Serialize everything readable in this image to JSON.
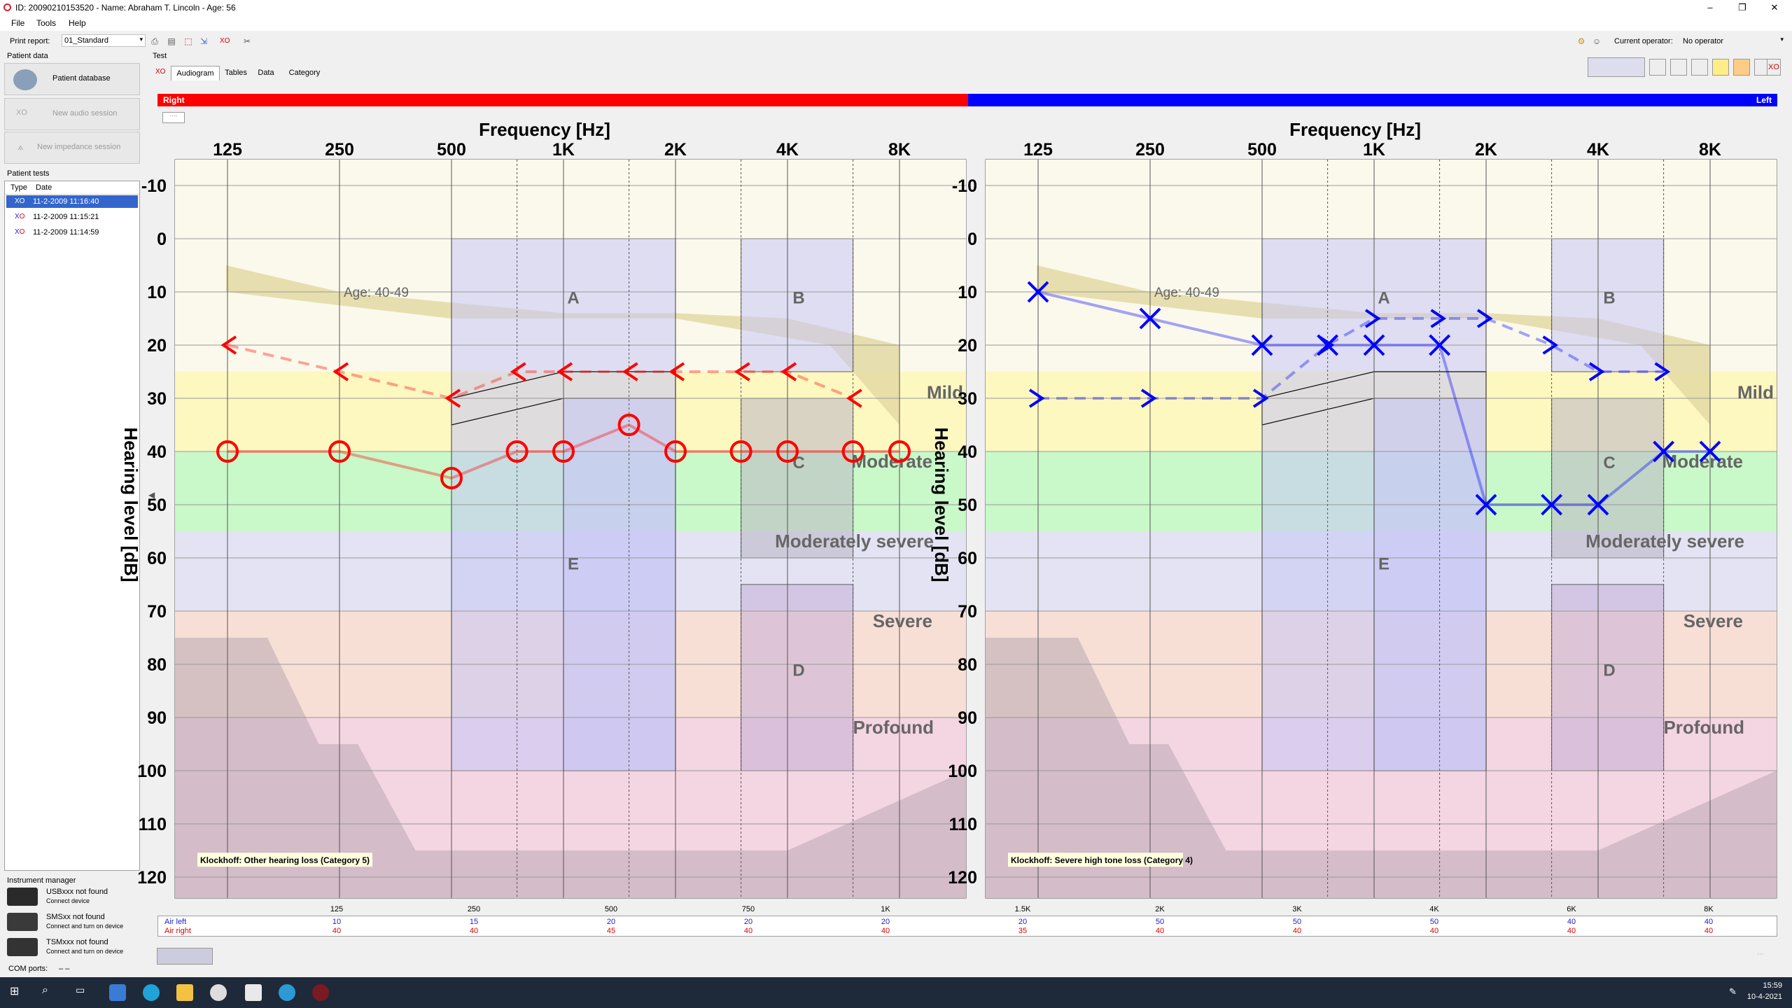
{
  "window": {
    "title": "ID: 20090210153520  -  Name: Abraham T. Lincoln - Age: 56",
    "controls": {
      "minimize": "–",
      "restore": "❐",
      "close": "✕"
    }
  },
  "menu": [
    "File",
    "Tools",
    "Help"
  ],
  "toolbar": {
    "print_report_label": "Print report:",
    "print_report_value": "01_Standard",
    "operator_label": "Current operator:",
    "operator_value": "No operator"
  },
  "left_panel": {
    "patient_data_label": "Patient data",
    "patient_database_button": "Patient database",
    "new_audio_session_button": "New audio session",
    "new_impedance_session_button": "New impedance session",
    "patient_tests_label": "Patient tests",
    "list_headers": {
      "type": "Type",
      "date": "Date"
    },
    "tests": [
      {
        "date": "11-2-2009 11:16:40",
        "selected": true
      },
      {
        "date": "11-2-2009 11:15:21",
        "selected": false
      },
      {
        "date": "11-2-2009 11:14:59",
        "selected": false
      }
    ],
    "instrument_manager_label": "Instrument manager",
    "instruments": [
      {
        "title": "USBxxx not found",
        "subtitle": "Connect device"
      },
      {
        "title": "SMSxx not found",
        "subtitle": "Connect and turn on device"
      },
      {
        "title": "TSMxxx not found",
        "subtitle": "Connect and turn on device"
      }
    ],
    "com_ports_label": "COM ports:",
    "com_ports_value": "–        –"
  },
  "main": {
    "test_label": "Test",
    "tabs": [
      {
        "label": "Audiogram",
        "active": true
      },
      {
        "label": "Tables",
        "active": false
      },
      {
        "label": "Data",
        "active": false
      },
      {
        "label": "Category",
        "active": false
      }
    ],
    "right_bar_label": "Right",
    "left_bar_label": "Left",
    "right_color": "#ff0000",
    "left_color": "#0000ff"
  },
  "chart_data": [
    {
      "type": "audiogram",
      "ear": "right",
      "xlabel": "Frequency [Hz]",
      "ylabel": "Hearing level [dB]",
      "x_ticks": [
        "125",
        "250",
        "500",
        "1K",
        "2K",
        "4K",
        "8K"
      ],
      "y_ticks": [
        -10,
        0,
        10,
        20,
        30,
        40,
        50,
        60,
        70,
        80,
        90,
        100,
        110,
        120
      ],
      "ylim": [
        -10,
        120
      ],
      "age_label": "Age: 40-49",
      "category_labels": [
        "Mild",
        "Moderate",
        "Moderately severe",
        "Severe",
        "Profound"
      ],
      "region_labels": [
        "A",
        "B",
        "C",
        "D",
        "E"
      ],
      "klockhoff": "Klockhoff: Other hearing loss (Category 5)",
      "series": [
        {
          "name": "Air",
          "marker": "O",
          "color": "#ff0000",
          "points": [
            [
              125,
              40
            ],
            [
              250,
              40
            ],
            [
              500,
              45
            ],
            [
              750,
              40
            ],
            [
              1000,
              40
            ],
            [
              1500,
              35
            ],
            [
              2000,
              40
            ],
            [
              3000,
              40
            ],
            [
              4000,
              40
            ],
            [
              6000,
              40
            ],
            [
              8000,
              40
            ]
          ]
        },
        {
          "name": "Bone",
          "marker": "<",
          "color": "#ff0000",
          "points": [
            [
              125,
              20
            ],
            [
              250,
              25
            ],
            [
              500,
              30
            ],
            [
              750,
              25
            ],
            [
              1000,
              25
            ],
            [
              1500,
              25
            ],
            [
              2000,
              25
            ],
            [
              3000,
              25
            ],
            [
              4000,
              25
            ],
            [
              6000,
              30
            ]
          ]
        }
      ]
    },
    {
      "type": "audiogram",
      "ear": "left",
      "xlabel": "Frequency [Hz]",
      "ylabel": "Hearing level [dB]",
      "x_ticks": [
        "125",
        "250",
        "500",
        "1K",
        "2K",
        "4K",
        "8K"
      ],
      "y_ticks": [
        -10,
        0,
        10,
        20,
        30,
        40,
        50,
        60,
        70,
        80,
        90,
        100,
        110,
        120
      ],
      "ylim": [
        -10,
        120
      ],
      "age_label": "Age: 40-49",
      "category_labels": [
        "Mild",
        "Moderate",
        "Moderately severe",
        "Severe",
        "Profound"
      ],
      "region_labels": [
        "A",
        "B",
        "C",
        "D",
        "E"
      ],
      "klockhoff": "Klockhoff: Severe high tone loss (Category 4)",
      "series": [
        {
          "name": "Air",
          "marker": "X",
          "color": "#0000ff",
          "points": [
            [
              125,
              10
            ],
            [
              250,
              15
            ],
            [
              500,
              20
            ],
            [
              750,
              20
            ],
            [
              1000,
              20
            ],
            [
              1500,
              20
            ],
            [
              2000,
              50
            ],
            [
              3000,
              50
            ],
            [
              4000,
              50
            ],
            [
              6000,
              40
            ],
            [
              8000,
              40
            ]
          ]
        },
        {
          "name": "Bone",
          "marker": ">",
          "color": "#0000ff",
          "points": [
            [
              125,
              30
            ],
            [
              250,
              30
            ],
            [
              500,
              30
            ],
            [
              750,
              20
            ],
            [
              1000,
              15
            ],
            [
              1500,
              15
            ],
            [
              2000,
              15
            ],
            [
              3000,
              20
            ],
            [
              4000,
              25
            ],
            [
              6000,
              25
            ]
          ]
        }
      ]
    }
  ],
  "table": {
    "frequencies": [
      "125",
      "250",
      "500",
      "750",
      "1K",
      "1.5K",
      "2K",
      "3K",
      "4K",
      "6K",
      "8K"
    ],
    "rows": [
      {
        "label": "Air left",
        "color": "#2222cc",
        "values": [
          "10",
          "15",
          "20",
          "20",
          "20",
          "20",
          "50",
          "50",
          "50",
          "40",
          "40"
        ]
      },
      {
        "label": "Air right",
        "color": "#dd0000",
        "values": [
          "40",
          "40",
          "45",
          "40",
          "40",
          "35",
          "40",
          "40",
          "40",
          "40",
          "40"
        ]
      }
    ]
  },
  "taskbar": {
    "time": "15:59",
    "date": "10-4-2021"
  }
}
